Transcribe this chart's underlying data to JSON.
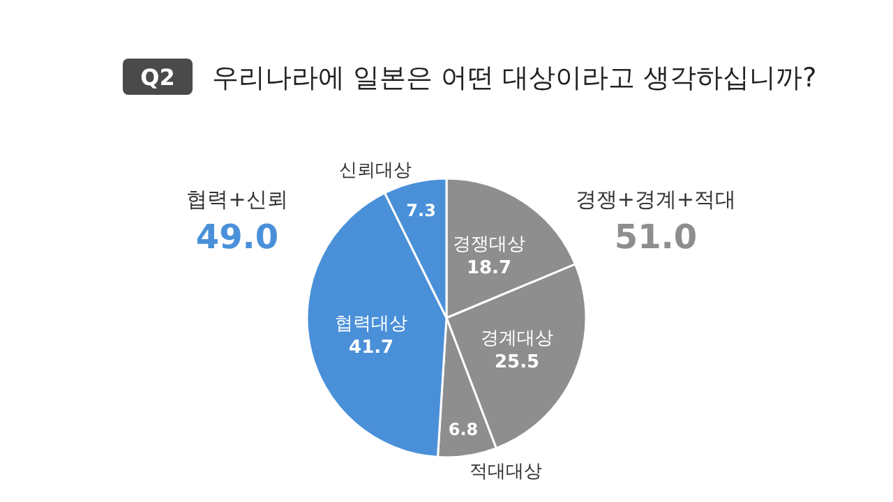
{
  "chart_data": {
    "type": "pie",
    "subtitle": "Q2",
    "title": "우리나라에 일본은 어떤 대상이라고 생각하십니까?",
    "categories": [
      "경쟁대상",
      "경계대상",
      "적대대상",
      "협력대상",
      "신뢰대상"
    ],
    "values": [
      18.7,
      25.5,
      6.8,
      41.7,
      7.3
    ],
    "colors": [
      "#8e8e8e",
      "#8e8e8e",
      "#8e8e8e",
      "#4a90d9",
      "#4a90d9"
    ],
    "data_labels": true,
    "annotations": [
      "협력+신뢰",
      "49.0",
      "경쟁+경계+적대",
      "51.0"
    ]
  }
}
